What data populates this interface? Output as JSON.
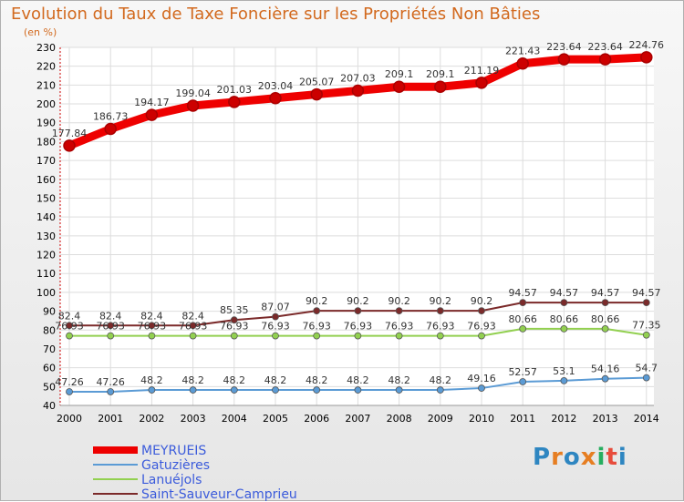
{
  "title": "Evolution du Taux de Taxe Foncière sur les Propriétés Non Bâties",
  "unit_label": "(en %)",
  "logo_text": "Proxiti",
  "chart_data": {
    "type": "line",
    "x": [
      "2000",
      "2001",
      "2002",
      "2003",
      "2004",
      "2005",
      "2006",
      "2007",
      "2008",
      "2009",
      "2010",
      "2011",
      "2012",
      "2013",
      "2014"
    ],
    "ylim": [
      40,
      230
    ],
    "yticks": [
      40,
      50,
      60,
      70,
      80,
      90,
      100,
      110,
      120,
      130,
      140,
      150,
      160,
      170,
      180,
      190,
      200,
      210,
      220,
      230
    ],
    "grid": true,
    "legend_position": "bottom-left",
    "series": [
      {
        "name": "MEYRUEIS",
        "color": "#ee0000",
        "values": [
          177.84,
          186.73,
          194.17,
          199.04,
          201.03,
          203.04,
          205.07,
          207.03,
          209.1,
          209.1,
          211.19,
          221.43,
          223.64,
          223.64,
          224.76
        ],
        "labels": [
          "177.84",
          "186.73",
          "194.17",
          "199.04",
          "201.03",
          "203.04",
          "205.07",
          "207.03",
          "209.1",
          "209.1",
          "211.19",
          "221.43",
          "223.64",
          "223.64",
          "224.76"
        ]
      },
      {
        "name": "Gatuzières",
        "color": "#5b9bd5",
        "values": [
          47.26,
          47.26,
          48.2,
          48.2,
          48.2,
          48.2,
          48.2,
          48.2,
          48.2,
          48.2,
          49.16,
          52.57,
          53.1,
          54.16,
          54.7
        ],
        "labels": [
          "47.26",
          "47.26",
          "48.2",
          "48.2",
          "48.2",
          "48.2",
          "48.2",
          "48.2",
          "48.2",
          "48.2",
          "49.16",
          "52.57",
          "53.1",
          "54.16",
          "54.7"
        ]
      },
      {
        "name": "Lanuéjols",
        "color": "#92d050",
        "values": [
          76.93,
          76.93,
          76.93,
          76.93,
          76.93,
          76.93,
          76.93,
          76.93,
          76.93,
          76.93,
          76.93,
          80.66,
          80.66,
          80.66,
          77.35
        ],
        "labels": [
          "76.93",
          "76.93",
          "76.93",
          "76.93",
          "76.93",
          "76.93",
          "76.93",
          "76.93",
          "76.93",
          "76.93",
          "76.93",
          "80.66",
          "80.66",
          "80.66",
          "77.35"
        ]
      },
      {
        "name": "Saint-Sauveur-Camprieu",
        "color": "#7b2a2a",
        "values": [
          82.4,
          82.4,
          82.4,
          82.4,
          85.35,
          87.07,
          90.2,
          90.2,
          90.2,
          90.2,
          90.2,
          94.57,
          94.57,
          94.57,
          94.57
        ],
        "labels": [
          "82.4",
          "82.4",
          "82.4",
          "82.4",
          "85.35",
          "87.07",
          "90.2",
          "90.2",
          "90.2",
          "90.2",
          "90.2",
          "94.57",
          "94.57",
          "94.57",
          "94.57"
        ]
      }
    ]
  }
}
